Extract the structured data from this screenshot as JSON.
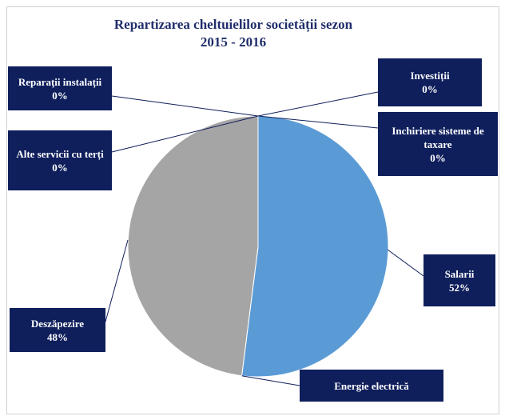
{
  "chart_data": {
    "type": "pie",
    "title": [
      "Repartizarea cheltuielilor societății sezon",
      "2015 - 2016"
    ],
    "categories": [
      "Investiții",
      "Inchiriere sisteme de taxare",
      "Salarii",
      "Energie electrică",
      "Deszăpezire",
      "Alte servicii cu terți",
      "Reparații instalații"
    ],
    "values": [
      0,
      0,
      52,
      0,
      48,
      0,
      0
    ],
    "value_labels": [
      "0%",
      "0%",
      "52%",
      null,
      "48%",
      "0%",
      "0%"
    ],
    "colors": [
      "#4472c4",
      "#ed7d31",
      "#5b9bd5",
      "#ffc000",
      "#a5a5a5",
      "#70ad47",
      "#264478"
    ]
  }
}
